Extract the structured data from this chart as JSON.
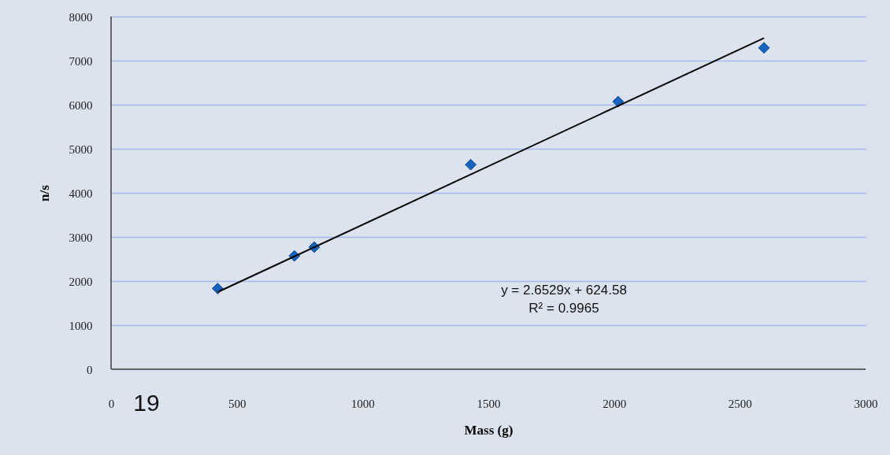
{
  "chart_data": {
    "type": "scatter",
    "xlabel": "Mass (g)",
    "ylabel": "n/s",
    "xlim": [
      0,
      3000
    ],
    "xticks": [
      0,
      500,
      1000,
      1500,
      2000,
      2500,
      3000
    ],
    "ylim": [
      0,
      8000
    ],
    "yticks": [
      0,
      1000,
      2000,
      3000,
      4000,
      5000,
      6000,
      7000,
      8000
    ],
    "grid": "y",
    "marker": "diamond",
    "series": [
      {
        "color": "#1565c0",
        "x": [
          424,
          729,
          808,
          1430,
          2016,
          2596
        ],
        "values": [
          1830,
          2570,
          2770,
          4640,
          6070,
          7290
        ]
      },
      {
        "type": "line",
        "color": "#000000",
        "marker": "none",
        "line_style": "solid",
        "x": [
          424,
          2596
        ],
        "values": [
          1750,
          7510
        ]
      }
    ],
    "annotations": [
      "y = 2.6529x + 624.58",
      "R² = 0.9965",
      "19"
    ]
  }
}
